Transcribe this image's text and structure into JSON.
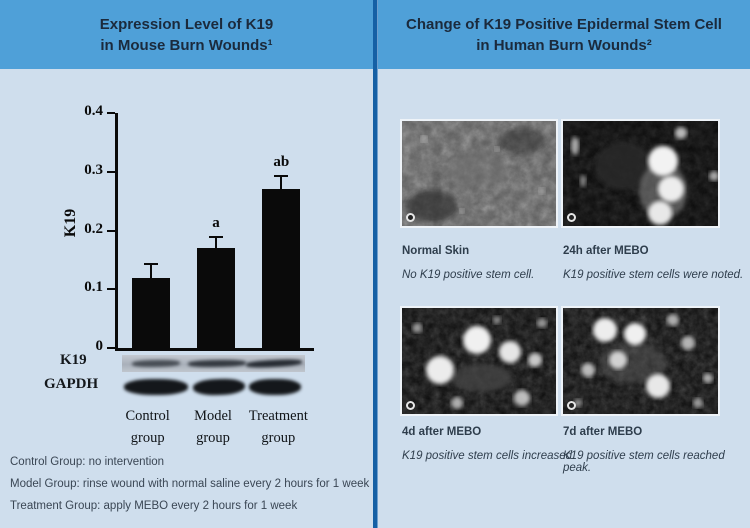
{
  "left_panel": {
    "title_line1": "Expression Level of K19",
    "title_line2": "in Mouse Burn Wounds¹",
    "blot": {
      "row1_label": "K19",
      "row2_label": "GAPDH"
    },
    "footnotes": [
      "Control Group: no intervention",
      "Model Group: rinse wound with normal saline every 2 hours for 1 week",
      "Treatment Group: apply MEBO every 2 hours for 1 week"
    ]
  },
  "right_panel": {
    "title_line1": "Change of K19 Positive Epidermal Stem Cell",
    "title_line2": "in Human Burn Wounds²",
    "figures": [
      {
        "label": "Normal Skin",
        "caption": "No K19 positive stem cell."
      },
      {
        "label": "24h after MEBO",
        "caption": "K19 positive stem cells were noted."
      },
      {
        "label": "4d after MEBO",
        "caption": "K19 positive stem cells increased."
      },
      {
        "label": "7d after MEBO",
        "caption": "K19 positive stem cells reached peak."
      }
    ]
  },
  "chart_data": {
    "type": "bar",
    "title": "Expression Level of K19 in Mouse Burn Wounds",
    "categories": [
      "Control group",
      "Model group",
      "Treatment group"
    ],
    "values": [
      0.12,
      0.17,
      0.27
    ],
    "error_bars": [
      0.025,
      0.02,
      0.025
    ],
    "significance_labels": [
      "",
      "a",
      "ab"
    ],
    "xlabel": "",
    "ylabel": "K19",
    "yticks": [
      0,
      0.1,
      0.2,
      0.3,
      0.4
    ],
    "ylim": [
      0,
      0.4
    ],
    "bar_color": "#0a0a0a",
    "grid": false,
    "legend": false
  },
  "colors": {
    "header_blue": "#4fa0d8",
    "panel_background": "#cfdeed",
    "divider_navy": "#1560a5",
    "title_text": "#1b2a3c",
    "bar_black": "#0a0a0a"
  }
}
